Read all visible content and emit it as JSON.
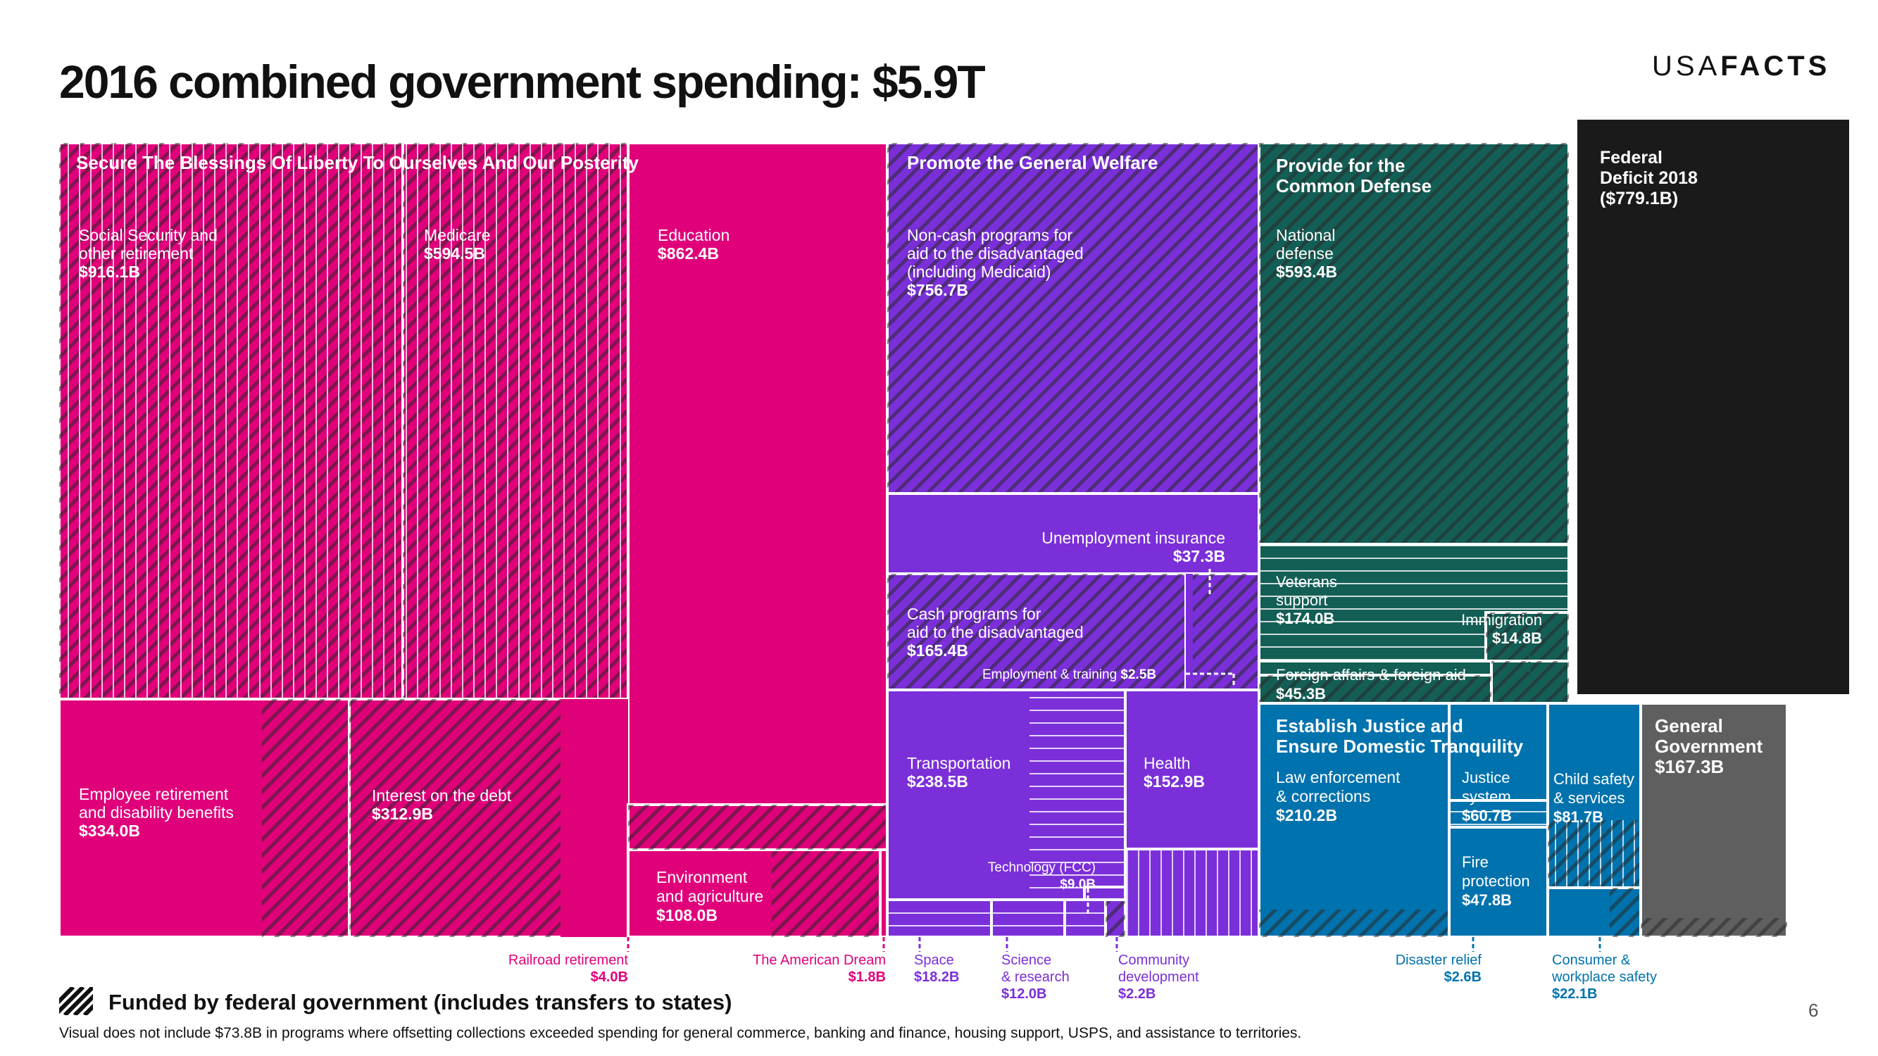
{
  "slide": {
    "title": "2016 combined government spending: $5.9T",
    "brand_light": "USA",
    "brand_bold": "FACTS",
    "legend_text": "Funded by federal government (includes transfers to states)",
    "footnote": "Visual does not include $73.8B in programs where offsetting collections exceeded spending for general commerce, banking and finance, housing support, USPS, and assistance to territories.",
    "page_number": "6"
  },
  "colors": {
    "liberty": "#e0007a",
    "welfare": "#7b2fd9",
    "defense": "#135e55",
    "justice": "#0072ad",
    "general": "#5f5f5f",
    "deficit": "#1a1a1a",
    "hatch": "#2a2a2a"
  },
  "chart_data": {
    "type": "treemap",
    "title": "2016 combined government spending: $5.9T",
    "total": "$5.9T",
    "groups": [
      {
        "name": "Secure The Blessings Of Liberty To Ourselves And Our Posterity",
        "items": [
          {
            "label": "Social Security and other retirement",
            "value": "$916.1B"
          },
          {
            "label": "Medicare",
            "value": "$594.5B"
          },
          {
            "label": "Education",
            "value": "$862.4B"
          },
          {
            "label": "Employee retirement and disability benefits",
            "value": "$334.0B"
          },
          {
            "label": "Interest on the debt",
            "value": "$312.9B"
          },
          {
            "label": "Environment and agriculture",
            "value": "$108.0B"
          },
          {
            "label": "Railroad retirement",
            "value": "$4.0B"
          },
          {
            "label": "The American Dream",
            "value": "$1.8B"
          }
        ]
      },
      {
        "name": "Promote the General Welfare",
        "items": [
          {
            "label": "Non-cash programs for aid to the disadvantaged (including Medicaid)",
            "value": "$756.7B"
          },
          {
            "label": "Unemployment insurance",
            "value": "$37.3B"
          },
          {
            "label": "Cash programs for aid to the disadvantaged",
            "value": "$165.4B"
          },
          {
            "label": "Employment & training",
            "value": "$2.5B"
          },
          {
            "label": "Transportation",
            "value": "$238.5B"
          },
          {
            "label": "Health",
            "value": "$152.9B"
          },
          {
            "label": "Technology (FCC)",
            "value": "$9.0B"
          },
          {
            "label": "Space",
            "value": "$18.2B"
          },
          {
            "label": "Science & research",
            "value": "$12.0B"
          },
          {
            "label": "Community development",
            "value": "$2.2B"
          }
        ]
      },
      {
        "name": "Provide for the Common Defense",
        "items": [
          {
            "label": "National defense",
            "value": "$593.4B"
          },
          {
            "label": "Veterans support",
            "value": "$174.0B"
          },
          {
            "label": "Immigration",
            "value": "$14.8B"
          },
          {
            "label": "Foreign affairs & foreign aid",
            "value": "$45.3B"
          }
        ]
      },
      {
        "name": "Establish Justice and Ensure Domestic Tranquility",
        "items": [
          {
            "label": "Law enforcement & corrections",
            "value": "$210.2B"
          },
          {
            "label": "Justice system",
            "value": "$60.7B"
          },
          {
            "label": "Fire protection",
            "value": "$47.8B"
          },
          {
            "label": "Child safety & services",
            "value": "$81.7B"
          },
          {
            "label": "Disaster relief",
            "value": "$2.6B"
          },
          {
            "label": "Consumer & workplace safety",
            "value": "$22.1B"
          }
        ]
      },
      {
        "name": "General Government",
        "items": [
          {
            "label": "General Government",
            "value": "$167.3B"
          }
        ]
      },
      {
        "name": "Federal Deficit 2018",
        "items": [
          {
            "label": "Federal Deficit 2018",
            "value": "($779.1B)"
          }
        ]
      }
    ],
    "labels": {
      "liberty_header": "Secure The Blessings Of Liberty To Ourselves And Our Posterity",
      "ss": [
        "Social Security and",
        "other retirement",
        "$916.1B"
      ],
      "medicare": [
        "Medicare",
        "$594.5B"
      ],
      "education": [
        "Education",
        "$862.4B"
      ],
      "emp": [
        "Employee retirement",
        "and disability benefits",
        "$334.0B"
      ],
      "interest": [
        "Interest on the debt",
        "$312.9B"
      ],
      "env": [
        "Environment",
        "and agriculture",
        "$108.0B"
      ],
      "rail": [
        "Railroad retirement",
        "$4.0B"
      ],
      "dream": [
        "The American Dream",
        "$1.8B"
      ],
      "welfare_header": "Promote the General Welfare",
      "noncash": [
        "Non-cash programs for",
        "aid to the disadvantaged",
        "(including Medicaid)",
        "$756.7B"
      ],
      "unemp": [
        "Unemployment insurance",
        "$37.3B"
      ],
      "cash": [
        "Cash programs for",
        "aid to the disadvantaged",
        "$165.4B"
      ],
      "emptrain": [
        "Employment & training",
        "$2.5B"
      ],
      "transport": [
        "Transportation",
        "$238.5B"
      ],
      "health": [
        "Health",
        "$152.9B"
      ],
      "tech": [
        "Technology (FCC)",
        "$9.0B"
      ],
      "space": [
        "Space",
        "$18.2B"
      ],
      "science": [
        "Science",
        "& research",
        "$12.0B"
      ],
      "community": [
        "Community",
        "development",
        "$2.2B"
      ],
      "defense_header": [
        "Provide for the",
        "Common Defense"
      ],
      "natdef": [
        "National",
        "defense",
        "$593.4B"
      ],
      "veterans": [
        "Veterans",
        "support",
        "$174.0B"
      ],
      "immig": [
        "Immigration",
        "$14.8B"
      ],
      "foreign": [
        "Foreign affairs & foreign aid",
        "$45.3B"
      ],
      "justice_header": [
        "Establish Justice and",
        "Ensure Domestic Tranquility"
      ],
      "law": [
        "Law enforcement",
        "& corrections",
        "$210.2B"
      ],
      "justsys": [
        "Justice",
        "system",
        "$60.7B"
      ],
      "fire": [
        "Fire",
        "protection",
        "$47.8B"
      ],
      "child": [
        "Child safety",
        "& services",
        "$81.7B"
      ],
      "disaster": [
        "Disaster relief",
        "$2.6B"
      ],
      "consumer": [
        "Consumer &",
        "workplace safety",
        "$22.1B"
      ],
      "general": [
        "General",
        "Government",
        "$167.3B"
      ],
      "deficit": [
        "Federal",
        "Deficit 2018",
        "($779.1B)"
      ]
    }
  }
}
